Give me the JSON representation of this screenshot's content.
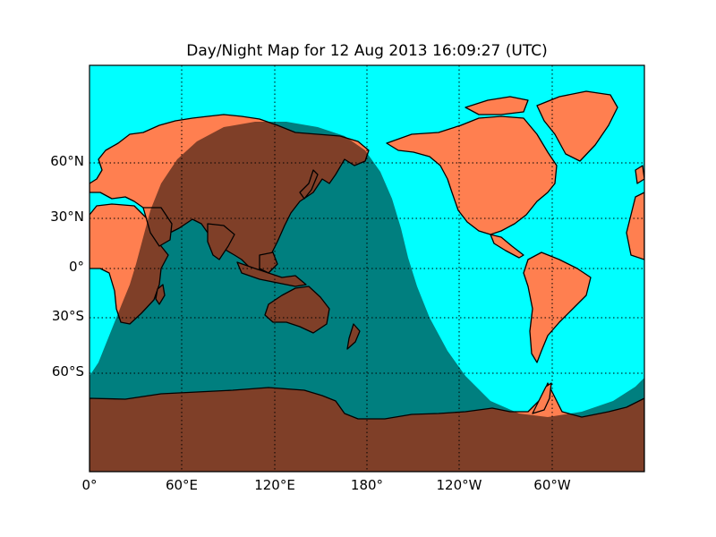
{
  "chart_data": {
    "type": "map",
    "projection": "cylindrical",
    "title": "Day/Night Map for 12 Aug 2013 16:09:27 (UTC)",
    "lon_range": [
      0,
      360
    ],
    "lat_range": [
      -90,
      90
    ],
    "grid": true,
    "meridian_labels": [
      "0°",
      "60°E",
      "120°E",
      "180°",
      "120°W",
      "60°W"
    ],
    "parallel_labels": [
      "60°N",
      "30°N",
      "0°",
      "30°S",
      "60°S"
    ],
    "colors": {
      "ocean": "#00ffff",
      "land": "#ff7f50",
      "night_shade": "#000000",
      "coastline": "#000000"
    },
    "night_shade_alpha": 0.5
  }
}
